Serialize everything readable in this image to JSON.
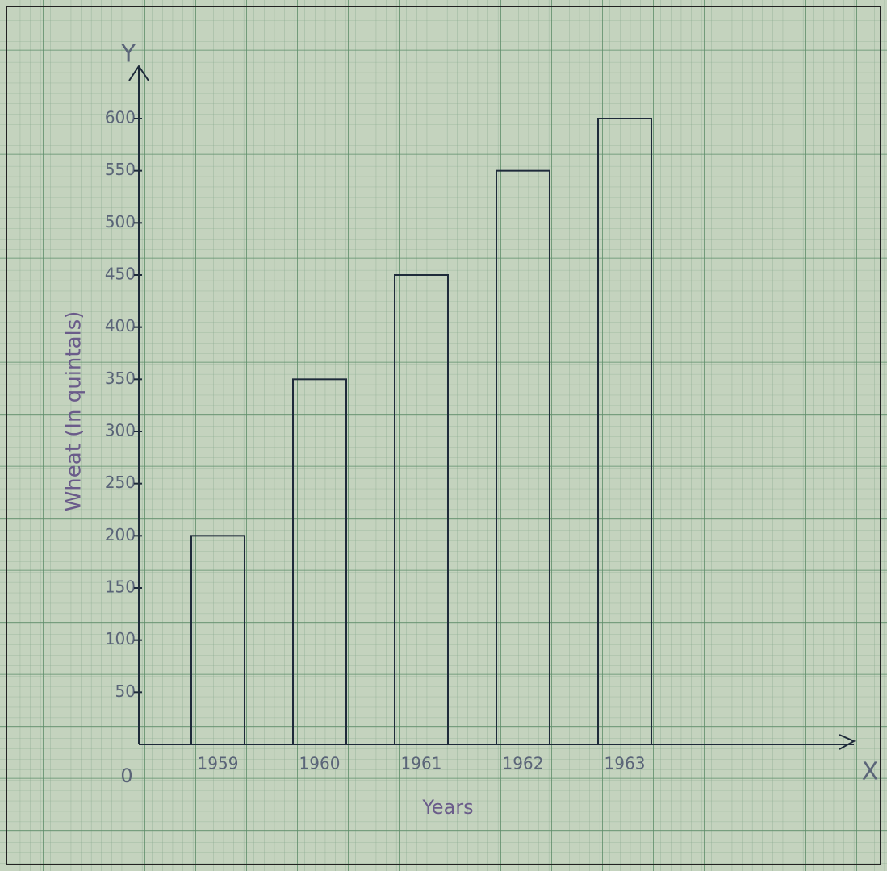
{
  "chart_data": {
    "type": "bar",
    "categories": [
      "1959",
      "1960",
      "1961",
      "1962",
      "1963"
    ],
    "values": [
      200,
      350,
      450,
      550,
      600
    ],
    "color": "#1e2a3a",
    "ylim": [
      0,
      650
    ],
    "yticks": [
      50,
      100,
      150,
      200,
      250,
      300,
      350,
      400,
      450,
      500,
      550,
      600
    ],
    "y_label": "Wheat (In quintals)",
    "x_label": "Years",
    "y_axis_letter": "Y",
    "x_axis_letter": "X",
    "origin_label": "0"
  }
}
